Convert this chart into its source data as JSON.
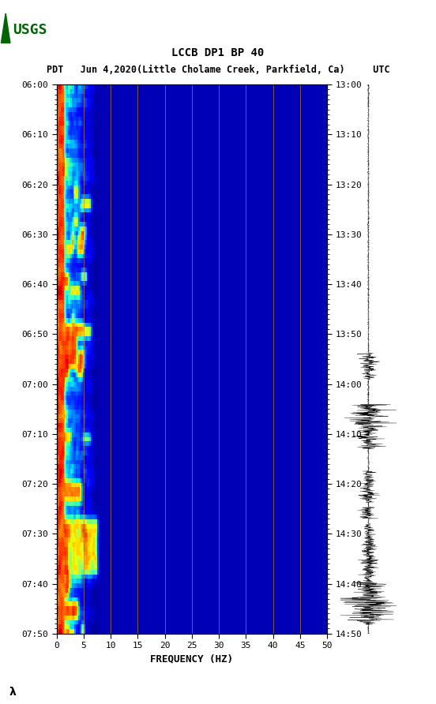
{
  "title_line1": "LCCB DP1 BP 40",
  "title_line2": "PDT   Jun 4,2020(Little Cholame Creek, Parkfield, Ca)     UTC",
  "xlabel": "FREQUENCY (HZ)",
  "xmin": 0,
  "xmax": 50,
  "xticks": [
    0,
    5,
    10,
    15,
    20,
    25,
    30,
    35,
    40,
    45,
    50
  ],
  "left_yticks_labels": [
    "06:00",
    "06:10",
    "06:20",
    "06:30",
    "06:40",
    "06:50",
    "07:00",
    "07:10",
    "07:20",
    "07:30",
    "07:40",
    "07:50"
  ],
  "right_yticks_labels": [
    "13:00",
    "13:10",
    "13:20",
    "13:30",
    "13:40",
    "13:50",
    "14:00",
    "14:10",
    "14:20",
    "14:30",
    "14:40",
    "14:50"
  ],
  "vline_color": "#b8860b",
  "background_color": "#ffffff",
  "fig_width": 5.52,
  "fig_height": 8.92,
  "usgs_color": "#006400",
  "n_time_steps": 120,
  "n_freq_bins": 200
}
